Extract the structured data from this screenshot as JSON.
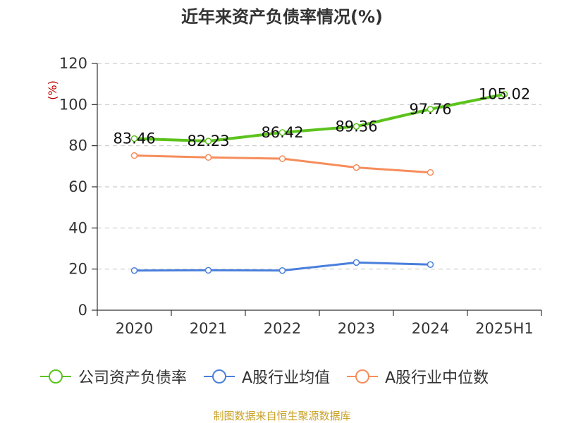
{
  "chart_data": {
    "type": "line",
    "title": "近年来资产负债率情况(%)",
    "ylabel": "(%)",
    "xlabel": "",
    "categories": [
      "2020",
      "2021",
      "2022",
      "2023",
      "2024",
      "2025H1"
    ],
    "ylim": [
      0,
      120
    ],
    "yticks": [
      0,
      20,
      40,
      60,
      80,
      100,
      120
    ],
    "grid": true,
    "legend_position": "bottom",
    "series": [
      {
        "name": "公司资产负债率",
        "color": "#5cc31d",
        "values": [
          83.46,
          82.23,
          86.42,
          89.36,
          97.76,
          105.02
        ],
        "labels": [
          "83.46",
          "82.23",
          "86.42",
          "89.36",
          "97.76",
          "105.02"
        ]
      },
      {
        "name": "A股行业均值",
        "color": "#4a7fdc",
        "values": [
          19.3,
          19.4,
          19.3,
          23.2,
          22.2,
          null
        ]
      },
      {
        "name": "A股行业中位数",
        "color": "#f68d5b",
        "values": [
          75.2,
          74.3,
          73.7,
          69.4,
          67.0,
          null
        ]
      }
    ],
    "source": "制图数据来自恒生聚源数据库"
  }
}
